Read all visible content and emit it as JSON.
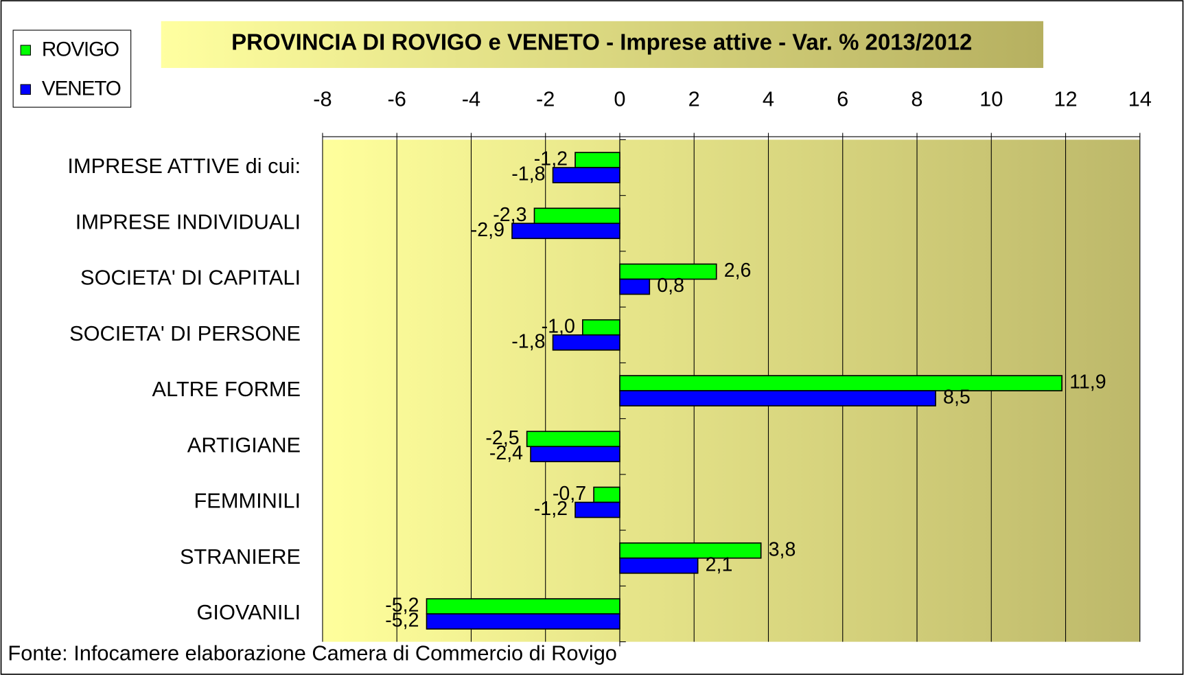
{
  "chart_data": {
    "type": "hbar",
    "title": "PROVINCIA DI ROVIGO e VENETO - Imprese attive - Var. % 2013/2012",
    "source": "Fonte: Infocamere elaborazione Camera di Commercio di Rovigo",
    "categories": [
      "IMPRESE ATTIVE di cui:",
      "IMPRESE INDIVIDUALI",
      "SOCIETA' DI CAPITALI",
      "SOCIETA' DI PERSONE",
      "ALTRE FORME",
      "ARTIGIANE",
      "FEMMINILI",
      "STRANIERE",
      "GIOVANILI"
    ],
    "series": [
      {
        "name": "ROVIGO",
        "color": "#00ff00",
        "values": [
          -1.2,
          -2.3,
          2.6,
          -1.0,
          11.9,
          -2.5,
          -0.7,
          3.8,
          -5.2
        ],
        "value_labels": [
          "-1,2",
          "-2,3",
          "2,6",
          "-1,0",
          "11,9",
          "-2,5",
          "-0,7",
          "3,8",
          "-5,2"
        ]
      },
      {
        "name": "VENETO",
        "color": "#0000ff",
        "values": [
          -1.8,
          -2.9,
          0.8,
          -1.8,
          8.5,
          -2.4,
          -1.2,
          2.1,
          -5.2
        ],
        "value_labels": [
          "-1,8",
          "-2,9",
          "0,8",
          "-1,8",
          "8,5",
          "-2,4",
          "-1,2",
          "2,1",
          "-5,2"
        ]
      }
    ],
    "xlim": [
      -8,
      14
    ],
    "xticks": [
      -8,
      -6,
      -4,
      -2,
      0,
      2,
      4,
      6,
      8,
      10,
      12,
      14
    ],
    "grid": true,
    "legend": "top-left"
  }
}
